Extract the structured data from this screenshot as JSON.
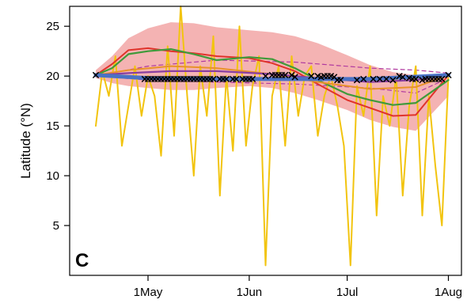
{
  "chart_data": {
    "type": "line",
    "panel_label": "C",
    "xlabel": "",
    "ylabel": "Latitude (°N)",
    "x_ticks": [
      {
        "label": "1May",
        "date": "2000-05-01"
      },
      {
        "label": "1Jun",
        "date": "2000-06-01"
      },
      {
        "label": "1Jul",
        "date": "2000-07-01"
      },
      {
        "label": "1Aug",
        "date": "2000-08-01"
      }
    ],
    "xlim": [
      "2000-04-07",
      "2000-08-05"
    ],
    "y_ticks": [
      5,
      10,
      15,
      20,
      25
    ],
    "ylim": [
      0,
      27
    ],
    "grid": false,
    "legend": "none",
    "colors": {
      "band": "#f4b3b3",
      "yellow": "#f2c40f",
      "red": "#e0332b",
      "green": "#3f9a3a",
      "orange": "#e8922a",
      "purple": "#8a3fa0",
      "blue": "#4a72c4",
      "dashed": "#b03aa0",
      "marker": "#000000"
    },
    "series": [
      {
        "style": "band",
        "x": [
          "2000-04-15",
          "2000-04-20",
          "2000-04-25",
          "2000-05-01",
          "2000-05-08",
          "2000-05-15",
          "2000-05-22",
          "2000-06-01",
          "2000-06-08",
          "2000-06-15",
          "2000-06-22",
          "2000-07-01",
          "2000-07-08",
          "2000-07-15",
          "2000-07-22",
          "2000-08-01"
        ],
        "lower": [
          19.8,
          19.3,
          19.0,
          18.8,
          18.6,
          18.6,
          18.8,
          19.0,
          18.8,
          18.3,
          17.6,
          16.6,
          15.6,
          14.9,
          14.5,
          18.0
        ],
        "upper": [
          20.6,
          22.0,
          23.8,
          24.8,
          25.4,
          25.3,
          24.9,
          24.6,
          24.4,
          24.0,
          23.3,
          22.1,
          21.1,
          20.4,
          20.1,
          20.3
        ]
      },
      {
        "style": "dashed",
        "x": [
          "2000-04-15",
          "2000-05-01",
          "2000-05-22",
          "2000-06-15",
          "2000-07-08",
          "2000-07-22",
          "2000-08-01"
        ],
        "values": [
          20.0,
          21.0,
          21.6,
          21.4,
          20.8,
          20.6,
          20.3
        ]
      },
      {
        "style": "dashed",
        "x": [
          "2000-04-15",
          "2000-05-01",
          "2000-05-22",
          "2000-06-15",
          "2000-07-08",
          "2000-07-22",
          "2000-08-01"
        ],
        "values": [
          20.0,
          19.6,
          19.4,
          19.2,
          18.8,
          18.3,
          19.8
        ]
      },
      {
        "style": "yellow",
        "x": [
          "2000-04-15",
          "2000-04-17",
          "2000-04-19",
          "2000-04-21",
          "2000-04-23",
          "2000-04-25",
          "2000-04-27",
          "2000-04-29",
          "2000-05-01",
          "2000-05-03",
          "2000-05-05",
          "2000-05-07",
          "2000-05-09",
          "2000-05-11",
          "2000-05-13",
          "2000-05-15",
          "2000-05-17",
          "2000-05-19",
          "2000-05-21",
          "2000-05-23",
          "2000-05-25",
          "2000-05-27",
          "2000-05-29",
          "2000-05-31",
          "2000-06-02",
          "2000-06-04",
          "2000-06-06",
          "2000-06-08",
          "2000-06-10",
          "2000-06-12",
          "2000-06-14",
          "2000-06-16",
          "2000-06-18",
          "2000-06-20",
          "2000-06-22",
          "2000-06-24",
          "2000-06-26",
          "2000-06-28",
          "2000-06-30",
          "2000-07-02",
          "2000-07-04",
          "2000-07-06",
          "2000-07-08",
          "2000-07-10",
          "2000-07-12",
          "2000-07-14",
          "2000-07-16",
          "2000-07-18",
          "2000-07-20",
          "2000-07-22",
          "2000-07-24",
          "2000-07-26",
          "2000-07-28",
          "2000-07-30",
          "2000-08-01"
        ],
        "values": [
          15,
          20.5,
          18,
          22,
          13,
          17,
          21,
          16,
          20,
          18,
          12,
          23,
          14,
          27,
          18,
          10,
          21,
          16,
          24,
          8,
          20,
          12.5,
          25,
          13,
          19,
          22,
          1,
          18,
          21,
          13,
          22,
          16,
          20,
          21,
          14,
          18,
          20,
          17,
          13,
          1,
          19,
          16,
          21,
          6,
          18,
          15,
          20,
          8,
          17,
          21,
          6,
          18,
          11,
          5,
          20
        ]
      },
      {
        "style": "red",
        "x": [
          "2000-04-15",
          "2000-04-20",
          "2000-04-25",
          "2000-05-01",
          "2000-05-08",
          "2000-05-15",
          "2000-05-22",
          "2000-06-01",
          "2000-06-08",
          "2000-06-15",
          "2000-06-22",
          "2000-07-01",
          "2000-07-08",
          "2000-07-15",
          "2000-07-22",
          "2000-08-01"
        ],
        "values": [
          20.1,
          21.2,
          22.6,
          22.8,
          22.5,
          22.3,
          22.0,
          21.8,
          21.3,
          20.5,
          19.2,
          17.6,
          16.8,
          16.0,
          16.1,
          20.1
        ]
      },
      {
        "style": "green",
        "x": [
          "2000-04-15",
          "2000-04-20",
          "2000-04-25",
          "2000-05-01",
          "2000-05-08",
          "2000-05-15",
          "2000-05-22",
          "2000-06-01",
          "2000-06-08",
          "2000-06-15",
          "2000-06-22",
          "2000-07-01",
          "2000-07-08",
          "2000-07-15",
          "2000-07-22",
          "2000-08-01"
        ],
        "values": [
          20.1,
          20.8,
          22.2,
          22.5,
          22.7,
          22.2,
          21.6,
          21.9,
          21.7,
          20.8,
          19.6,
          18.2,
          17.6,
          17.1,
          17.3,
          19.6
        ]
      },
      {
        "style": "orange",
        "x": [
          "2000-04-15",
          "2000-04-25",
          "2000-05-08",
          "2000-05-22",
          "2000-06-08",
          "2000-06-22",
          "2000-07-08",
          "2000-07-22",
          "2000-08-01"
        ],
        "values": [
          20.1,
          20.6,
          21.0,
          20.8,
          20.2,
          19.4,
          18.7,
          18.9,
          20.1
        ]
      },
      {
        "style": "purple",
        "x": [
          "2000-04-15",
          "2000-04-25",
          "2000-05-08",
          "2000-05-22",
          "2000-06-08",
          "2000-06-22",
          "2000-07-08",
          "2000-07-22",
          "2000-08-01"
        ],
        "values": [
          20.1,
          20.3,
          20.5,
          20.5,
          20.2,
          19.8,
          19.4,
          19.6,
          20.1
        ]
      },
      {
        "style": "blue",
        "x": [
          "2000-04-15",
          "2000-05-01",
          "2000-05-22",
          "2000-06-15",
          "2000-07-08",
          "2000-08-01"
        ],
        "values": [
          20.1,
          19.8,
          19.7,
          19.7,
          19.7,
          20.1
        ]
      }
    ],
    "markers": {
      "x": [
        "2000-04-15",
        "2000-04-30",
        "2000-05-01",
        "2000-05-02",
        "2000-05-03",
        "2000-05-04",
        "2000-05-05",
        "2000-05-06",
        "2000-05-07",
        "2000-05-08",
        "2000-05-09",
        "2000-05-10",
        "2000-05-11",
        "2000-05-12",
        "2000-05-13",
        "2000-05-14",
        "2000-05-15",
        "2000-05-16",
        "2000-05-17",
        "2000-05-18",
        "2000-05-19",
        "2000-05-20",
        "2000-05-21",
        "2000-05-23",
        "2000-05-24",
        "2000-05-25",
        "2000-05-27",
        "2000-05-28",
        "2000-05-30",
        "2000-05-31",
        "2000-06-01",
        "2000-06-02",
        "2000-06-06",
        "2000-06-08",
        "2000-06-09",
        "2000-06-10",
        "2000-06-11",
        "2000-06-12",
        "2000-06-14",
        "2000-06-15",
        "2000-06-20",
        "2000-06-22",
        "2000-06-23",
        "2000-06-24",
        "2000-06-25",
        "2000-06-26",
        "2000-06-27",
        "2000-06-28",
        "2000-06-29",
        "2000-07-04",
        "2000-07-06",
        "2000-07-09",
        "2000-07-11",
        "2000-07-13",
        "2000-07-15",
        "2000-07-17",
        "2000-07-18",
        "2000-07-20",
        "2000-07-21",
        "2000-07-22",
        "2000-07-24",
        "2000-07-25",
        "2000-07-26",
        "2000-07-27",
        "2000-07-28",
        "2000-07-29",
        "2000-07-30",
        "2000-08-01"
      ],
      "values": [
        20.1,
        19.7,
        19.7,
        19.7,
        19.7,
        19.7,
        19.7,
        19.7,
        19.7,
        19.7,
        19.7,
        19.7,
        19.7,
        19.7,
        19.7,
        19.7,
        19.7,
        19.7,
        19.7,
        19.7,
        19.7,
        19.7,
        19.7,
        19.7,
        19.7,
        19.7,
        19.7,
        19.7,
        19.7,
        19.7,
        19.7,
        19.7,
        20.0,
        20.1,
        20.1,
        20.1,
        20.1,
        20.1,
        20.1,
        19.9,
        20.0,
        20.0,
        19.9,
        20.0,
        20.0,
        20.0,
        19.9,
        19.6,
        19.6,
        19.6,
        19.7,
        19.7,
        19.7,
        19.7,
        19.6,
        20.0,
        19.9,
        19.8,
        19.7,
        19.7,
        19.6,
        19.7,
        19.7,
        19.7,
        19.7,
        19.7,
        19.7,
        20.1
      ]
    }
  }
}
